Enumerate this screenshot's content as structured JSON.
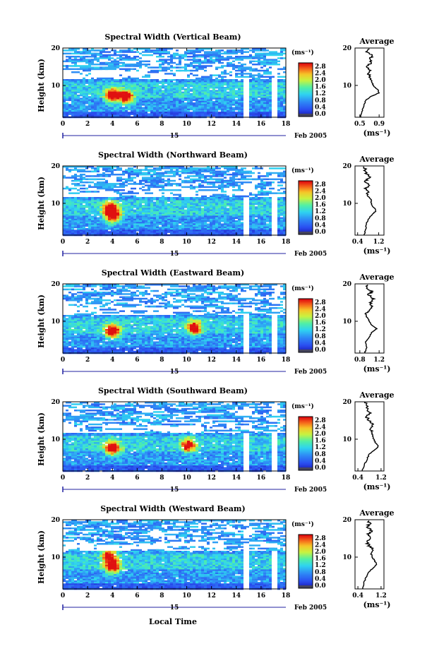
{
  "chart_data": [
    {
      "type": "heatmap",
      "title": "Spectral Width (Vertical Beam)",
      "ylabel": "Height (km)",
      "x_ticks": [
        "0",
        "2",
        "4",
        "6",
        "8",
        "10",
        "12",
        "14",
        "16",
        "18"
      ],
      "y_ticks": [
        "10",
        "20"
      ],
      "xlim": [
        0,
        18
      ],
      "ylim": [
        1.5,
        20
      ],
      "colorbar": {
        "unit": "(ms⁻¹)",
        "ticks": [
          "0.0",
          "0.4",
          "0.8",
          "1.2",
          "1.6",
          "2.0",
          "2.4",
          "2.8"
        ],
        "range": [
          0,
          3.0
        ]
      },
      "hotspots": [
        {
          "t": 3.9,
          "h": 7.5,
          "v": 2.8
        },
        {
          "t": 5.0,
          "h": 7.0,
          "v": 2.6
        }
      ],
      "gaps": [
        [
          14.5,
          14.9
        ],
        [
          16.8,
          17.3
        ]
      ],
      "date_label": "15",
      "date_suffix": "Feb 2005",
      "average": {
        "title": "Average",
        "xlabel": "(ms⁻¹)",
        "x_ticks": [
          "0.5",
          "0.9"
        ],
        "xlim": [
          0.4,
          1.0
        ],
        "y_ticks": [
          "10",
          "20"
        ],
        "profile": [
          [
            1.5,
            0.52
          ],
          [
            3,
            0.55
          ],
          [
            4.5,
            0.58
          ],
          [
            6,
            0.62
          ],
          [
            7,
            0.72
          ],
          [
            8,
            0.9
          ],
          [
            9,
            0.86
          ],
          [
            10,
            0.78
          ],
          [
            11,
            0.75
          ],
          [
            12,
            0.71
          ],
          [
            13,
            0.68
          ],
          [
            14,
            0.74
          ],
          [
            15,
            0.64
          ],
          [
            16,
            0.73
          ],
          [
            17,
            0.7
          ],
          [
            18,
            0.76
          ],
          [
            19,
            0.66
          ],
          [
            20,
            0.7
          ]
        ]
      }
    },
    {
      "type": "heatmap",
      "title": "Spectral Width (Northward Beam)",
      "ylabel": "Height (km)",
      "x_ticks": [
        "0",
        "2",
        "4",
        "6",
        "8",
        "10",
        "12",
        "14",
        "16",
        "18"
      ],
      "y_ticks": [
        "10",
        "20"
      ],
      "xlim": [
        0,
        18
      ],
      "ylim": [
        1.5,
        20
      ],
      "colorbar": {
        "unit": "(ms⁻¹)",
        "ticks": [
          "0.0",
          "0.4",
          "0.8",
          "1.2",
          "1.6",
          "2.0",
          "2.4",
          "2.8"
        ],
        "range": [
          0,
          3.0
        ]
      },
      "hotspots": [
        {
          "t": 3.9,
          "h": 7.0,
          "v": 2.9
        },
        {
          "t": 3.7,
          "h": 9.0,
          "v": 2.2
        }
      ],
      "gaps": [
        [
          14.5,
          14.9
        ],
        [
          16.8,
          17.3
        ]
      ],
      "date_label": "15",
      "date_suffix": "Feb 2005",
      "average": {
        "title": "Average",
        "xlabel": "(ms⁻¹)",
        "x_ticks": [
          "0.4",
          "1.2"
        ],
        "xlim": [
          0.3,
          1.4
        ],
        "y_ticks": [
          "10",
          "20"
        ],
        "profile": [
          [
            1.5,
            0.65
          ],
          [
            3,
            0.7
          ],
          [
            4.5,
            0.72
          ],
          [
            6,
            0.82
          ],
          [
            7,
            0.95
          ],
          [
            8,
            1.1
          ],
          [
            9,
            1.0
          ],
          [
            10,
            0.92
          ],
          [
            11,
            0.9
          ],
          [
            12,
            0.78
          ],
          [
            13,
            0.8
          ],
          [
            14,
            0.7
          ],
          [
            15,
            0.82
          ],
          [
            16,
            0.7
          ],
          [
            17,
            0.85
          ],
          [
            18,
            0.72
          ],
          [
            19,
            0.68
          ],
          [
            20,
            0.65
          ]
        ]
      }
    },
    {
      "type": "heatmap",
      "title": "Spectral Width (Eastward Beam)",
      "ylabel": "Height (km)",
      "x_ticks": [
        "0",
        "2",
        "4",
        "6",
        "8",
        "10",
        "12",
        "14",
        "16",
        "18"
      ],
      "y_ticks": [
        "10",
        "20"
      ],
      "xlim": [
        0,
        18
      ],
      "ylim": [
        1.5,
        20
      ],
      "colorbar": {
        "unit": "(ms⁻¹)",
        "ticks": [
          "0.0",
          "0.4",
          "0.8",
          "1.2",
          "1.6",
          "2.0",
          "2.4",
          "2.8"
        ],
        "range": [
          0,
          3.0
        ]
      },
      "hotspots": [
        {
          "t": 3.9,
          "h": 7.5,
          "v": 2.8
        },
        {
          "t": 10.5,
          "h": 8.5,
          "v": 2.3
        }
      ],
      "gaps": [
        [
          14.5,
          14.9
        ],
        [
          16.8,
          17.3
        ]
      ],
      "date_label": "15",
      "date_suffix": "Feb 2005",
      "average": {
        "title": "Average",
        "xlabel": "(ms⁻¹)",
        "x_ticks": [
          "0.8",
          "1.2"
        ],
        "xlim": [
          0.7,
          1.3
        ],
        "y_ticks": [
          "10",
          "20"
        ],
        "profile": [
          [
            1.5,
            0.9
          ],
          [
            3,
            0.95
          ],
          [
            4.5,
            0.92
          ],
          [
            6,
            1.0
          ],
          [
            7,
            1.05
          ],
          [
            8,
            1.15
          ],
          [
            9,
            1.05
          ],
          [
            10,
            1.0
          ],
          [
            11,
            0.95
          ],
          [
            12,
            0.92
          ],
          [
            13,
            0.98
          ],
          [
            14,
            1.08
          ],
          [
            15,
            1.0
          ],
          [
            16,
            1.1
          ],
          [
            17,
            0.98
          ],
          [
            18,
            1.05
          ],
          [
            19,
            0.92
          ],
          [
            20,
            0.95
          ]
        ]
      }
    },
    {
      "type": "heatmap",
      "title": "Spectral Width (Southward Beam)",
      "ylabel": "Height (km)",
      "x_ticks": [
        "0",
        "2",
        "4",
        "6",
        "8",
        "10",
        "12",
        "14",
        "16",
        "18"
      ],
      "y_ticks": [
        "10",
        "20"
      ],
      "xlim": [
        0,
        18
      ],
      "ylim": [
        1.5,
        20
      ],
      "colorbar": {
        "unit": "(ms⁻¹)",
        "ticks": [
          "0.0",
          "0.4",
          "0.8",
          "1.2",
          "1.6",
          "2.0",
          "2.4",
          "2.8"
        ],
        "range": [
          0,
          3.0
        ]
      },
      "hotspots": [
        {
          "t": 3.9,
          "h": 7.8,
          "v": 2.8
        },
        {
          "t": 10.0,
          "h": 8.5,
          "v": 2.2
        }
      ],
      "gaps": [
        [
          14.5,
          14.9
        ],
        [
          16.8,
          17.3
        ]
      ],
      "date_label": "15",
      "date_suffix": "Feb 2005",
      "average": {
        "title": "Average",
        "xlabel": "(ms⁻¹)",
        "x_ticks": [
          "0.4",
          "1.2"
        ],
        "xlim": [
          0.3,
          1.3
        ],
        "y_ticks": [
          "10",
          "20"
        ],
        "profile": [
          [
            1.5,
            0.55
          ],
          [
            3,
            0.62
          ],
          [
            4.5,
            0.7
          ],
          [
            6,
            0.8
          ],
          [
            7,
            0.95
          ],
          [
            8,
            1.1
          ],
          [
            9,
            1.02
          ],
          [
            10,
            0.95
          ],
          [
            11,
            0.9
          ],
          [
            12,
            0.88
          ],
          [
            13,
            0.82
          ],
          [
            14,
            0.9
          ],
          [
            15,
            0.8
          ],
          [
            16,
            0.7
          ],
          [
            17,
            0.85
          ],
          [
            18,
            0.72
          ],
          [
            19,
            0.75
          ],
          [
            20,
            0.6
          ]
        ]
      }
    },
    {
      "type": "heatmap",
      "title": "Spectral Width (Westward Beam)",
      "ylabel": "Height (km)",
      "x_ticks": [
        "0",
        "2",
        "4",
        "6",
        "8",
        "10",
        "12",
        "14",
        "16",
        "18"
      ],
      "y_ticks": [
        "10",
        "20"
      ],
      "xlim": [
        0,
        18
      ],
      "ylim": [
        1.5,
        20
      ],
      "colorbar": {
        "unit": "(ms⁻¹)",
        "ticks": [
          "0.0",
          "0.4",
          "0.8",
          "1.2",
          "1.6",
          "2.0",
          "2.4",
          "2.8"
        ],
        "range": [
          0,
          3.0
        ]
      },
      "hotspots": [
        {
          "t": 3.9,
          "h": 7.8,
          "v": 2.8
        },
        {
          "t": 3.6,
          "h": 11.0,
          "v": 2.2
        }
      ],
      "gaps": [
        [
          14.5,
          14.9
        ],
        [
          16.8,
          17.3
        ]
      ],
      "date_label": "15",
      "date_suffix": "Feb 2005",
      "xlabel": "Local Time",
      "average": {
        "title": "Average",
        "xlabel": "(ms⁻¹)",
        "x_ticks": [
          "0.4",
          "1.2"
        ],
        "xlim": [
          0.3,
          1.3
        ],
        "y_ticks": [
          "10",
          "20"
        ],
        "profile": [
          [
            1.5,
            0.58
          ],
          [
            3,
            0.6
          ],
          [
            4.5,
            0.68
          ],
          [
            6,
            0.78
          ],
          [
            7,
            0.9
          ],
          [
            8,
            1.05
          ],
          [
            9,
            0.98
          ],
          [
            10,
            0.9
          ],
          [
            11,
            0.85
          ],
          [
            12,
            0.92
          ],
          [
            13,
            0.8
          ],
          [
            14,
            0.7
          ],
          [
            15,
            0.85
          ],
          [
            16,
            0.72
          ],
          [
            17,
            0.9
          ],
          [
            18,
            0.7
          ],
          [
            19,
            0.82
          ],
          [
            20,
            0.75
          ]
        ]
      }
    }
  ]
}
